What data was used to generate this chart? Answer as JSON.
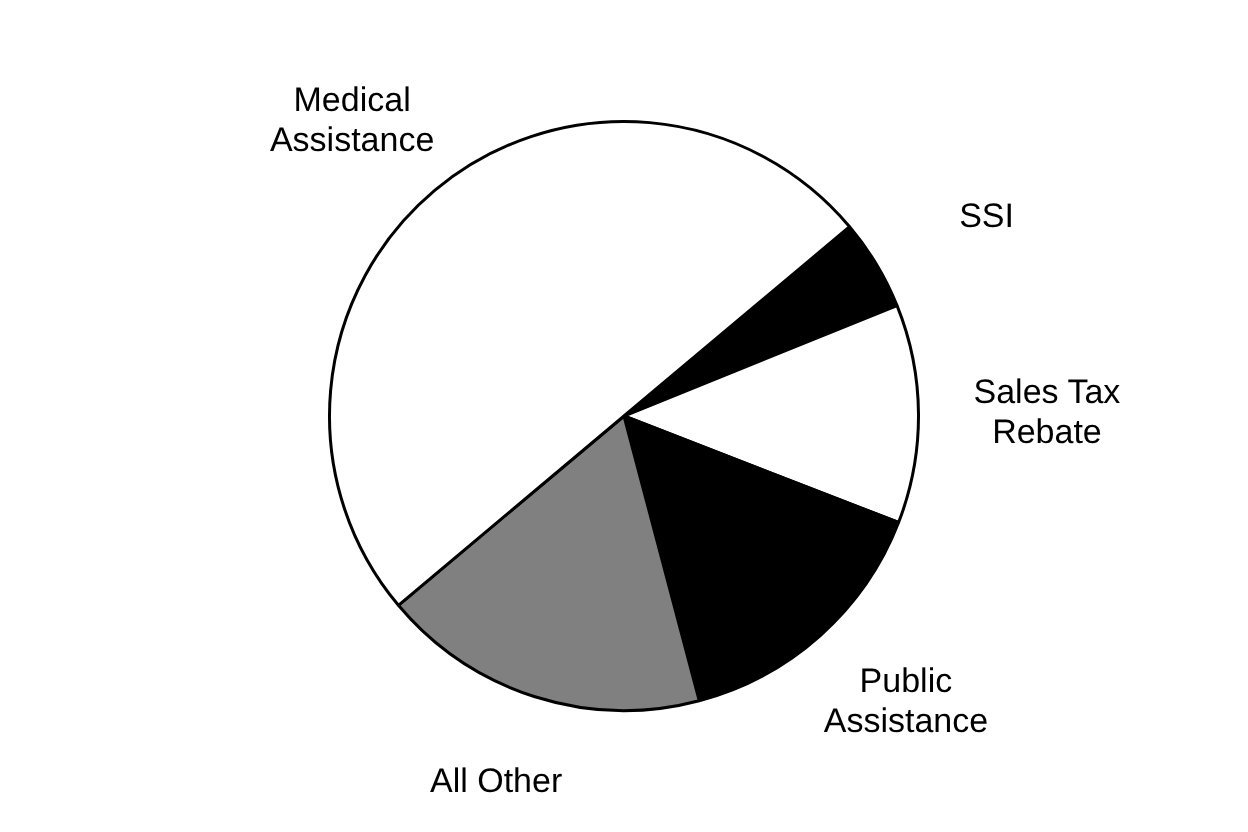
{
  "chart_data": {
    "type": "pie",
    "categories": [
      "SSI",
      "Sales Tax Rebate",
      "Public Assistance",
      "All Other",
      "Medical Assistance"
    ],
    "values": [
      5,
      12,
      15,
      18,
      50
    ],
    "colors": [
      "#000000",
      "#ffffff",
      "#000000",
      "#808080",
      "#ffffff"
    ],
    "legend": false
  }
}
